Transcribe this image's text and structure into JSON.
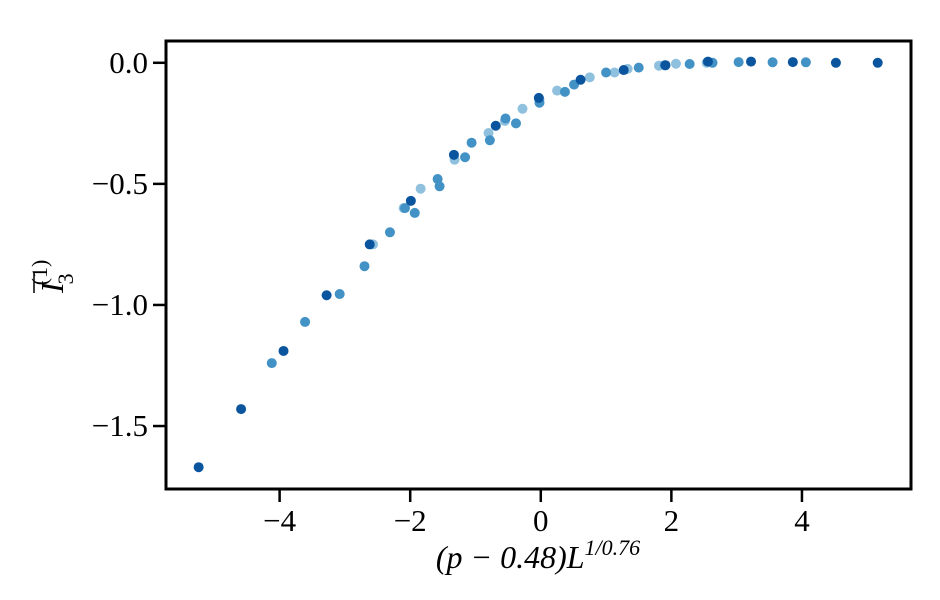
{
  "chart_data": {
    "type": "scatter",
    "xlabel": "(p − 0.48)L",
    "xlabel_superscript": "1/0.76",
    "ylabel": "I",
    "ylabel_subscript": "3",
    "ylabel_superscript": "(1)",
    "xlim": [
      -5.74,
      5.67
    ],
    "ylim": [
      -1.76,
      0.09
    ],
    "xticks": [
      {
        "value": -4,
        "label": "−4"
      },
      {
        "value": -2,
        "label": "−2"
      },
      0,
      2,
      4
    ],
    "yticks": [
      {
        "value": 0,
        "label": "0.0"
      },
      {
        "value": -0.5,
        "label": "−0.5"
      },
      {
        "value": -1,
        "label": "−1.0"
      },
      {
        "value": -1.5,
        "label": "−1.5"
      }
    ],
    "series": [
      {
        "color": "#8fc1df",
        "x": [
          -2.57,
          -2.1,
          -1.84,
          -1.32,
          -0.8,
          -0.55,
          -0.28,
          -0.02,
          0.25,
          0.75,
          1.13,
          1.33,
          1.81,
          2.07,
          2.54
        ],
        "values": [
          -0.75,
          -0.6,
          -0.52,
          -0.4,
          -0.29,
          -0.24,
          -0.19,
          -0.15,
          -0.115,
          -0.06,
          -0.04,
          -0.025,
          -0.012,
          -0.004,
          0
        ]
      },
      {
        "color": "#4292c6",
        "x": [
          -4.12,
          -3.61,
          -3.08,
          -2.7,
          -2.31,
          -2.08,
          -1.93,
          -1.58,
          -1.55,
          -1.16,
          -1.06,
          -0.78,
          -0.54,
          -0.38,
          -0.02,
          0.37,
          0.51,
          1.0,
          1.5,
          1.9,
          2.28,
          2.63,
          3.03,
          3.55,
          4.06
        ],
        "values": [
          -1.24,
          -1.07,
          -0.955,
          -0.84,
          -0.7,
          -0.6,
          -0.62,
          -0.48,
          -0.51,
          -0.39,
          -0.33,
          -0.32,
          -0.23,
          -0.25,
          -0.165,
          -0.12,
          -0.09,
          -0.04,
          -0.02,
          -0.01,
          -0.005,
          0,
          0.003,
          0.002,
          0.002
        ]
      },
      {
        "color": "#0b559f",
        "x": [
          -5.24,
          -4.59,
          -3.94,
          -3.28,
          -2.62,
          -1.99,
          -1.33,
          -0.69,
          -0.03,
          0.61,
          1.27,
          1.91,
          2.56,
          3.22,
          3.86,
          4.52,
          5.16
        ],
        "values": [
          -1.67,
          -1.43,
          -1.19,
          -0.96,
          -0.75,
          -0.57,
          -0.38,
          -0.26,
          -0.145,
          -0.07,
          -0.03,
          -0.01,
          0.005,
          0.005,
          0.003,
          0,
          0
        ]
      }
    ]
  }
}
